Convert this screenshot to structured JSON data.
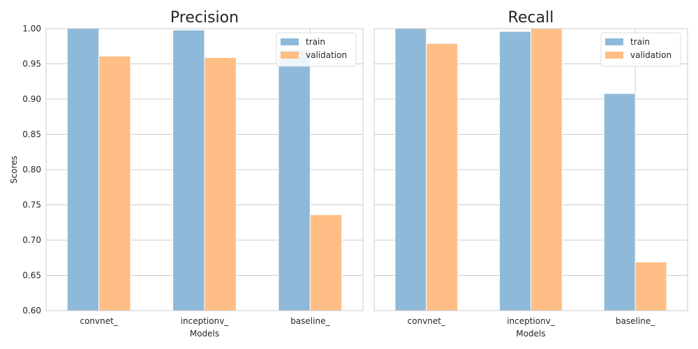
{
  "chart_data": [
    {
      "type": "bar",
      "title": "Precision",
      "xlabel": "Models",
      "ylabel": "Scores",
      "categories": [
        "convnet_",
        "inceptionv_",
        "baseline_"
      ],
      "series": [
        {
          "name": "train",
          "values": [
            1.0,
            0.998,
            0.97
          ]
        },
        {
          "name": "validation",
          "values": [
            0.961,
            0.959,
            0.736
          ]
        }
      ],
      "ylim": [
        0.6,
        1.0
      ],
      "yticks": [
        "0.60",
        "0.65",
        "0.70",
        "0.75",
        "0.80",
        "0.85",
        "0.90",
        "0.95",
        "1.00"
      ],
      "grid": true,
      "legend": "top-right"
    },
    {
      "type": "bar",
      "title": "Recall",
      "xlabel": "Models",
      "ylabel": "",
      "categories": [
        "convnet_",
        "inceptionv_",
        "baseline_"
      ],
      "series": [
        {
          "name": "train",
          "values": [
            1.0,
            0.996,
            0.908
          ]
        },
        {
          "name": "validation",
          "values": [
            0.979,
            1.0,
            0.669
          ]
        }
      ],
      "ylim": [
        0.6,
        1.0
      ],
      "yticks": [],
      "grid": true,
      "legend": "top-right"
    }
  ],
  "colors": {
    "train": "#8fb9d9",
    "validation": "#ffbe85"
  }
}
